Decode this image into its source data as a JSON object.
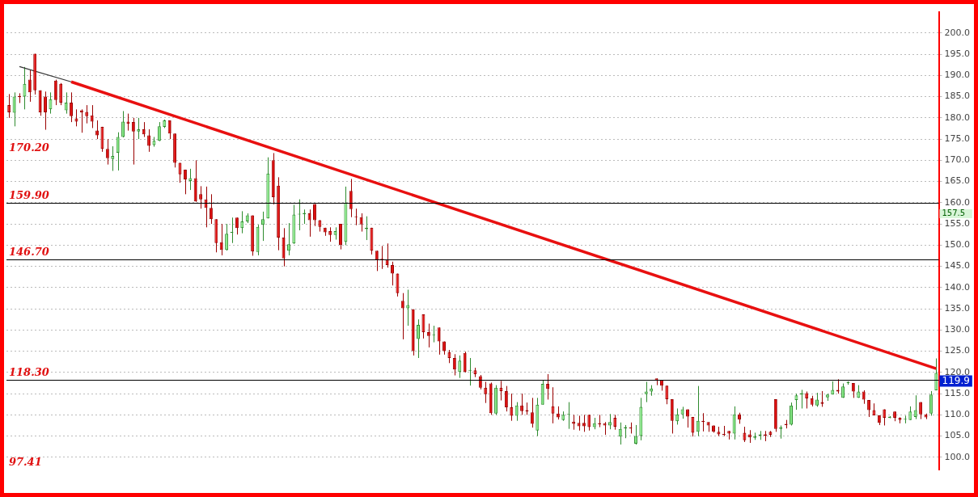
{
  "chart_data": {
    "type": "candlestick",
    "categories": [
      null,
      null,
      null,
      null,
      null,
      null,
      null,
      null,
      null,
      null,
      null,
      null,
      null,
      null,
      null,
      null,
      null,
      null,
      null,
      null,
      null,
      null,
      null,
      null,
      null,
      null,
      null,
      null,
      null,
      null,
      null,
      null,
      null,
      null,
      null,
      null,
      null,
      null,
      null,
      null,
      null,
      null,
      null,
      null,
      null,
      null,
      null,
      null,
      null,
      null,
      null,
      null,
      null,
      null,
      null,
      null,
      null,
      null,
      null,
      null,
      null,
      null,
      null,
      null,
      null,
      null,
      null,
      null,
      null,
      null,
      null,
      null,
      null,
      null,
      null,
      null,
      null,
      null,
      null,
      null,
      null,
      null,
      null,
      null,
      null,
      null,
      null,
      null,
      null,
      null,
      null,
      null,
      null,
      null,
      null,
      null,
      null,
      null,
      null,
      null,
      null,
      null,
      null,
      null,
      null,
      null,
      null,
      null,
      null,
      null,
      null,
      null,
      null,
      null,
      null,
      null,
      null,
      null,
      null,
      null,
      null,
      null,
      null,
      null,
      null,
      null,
      null,
      null,
      null,
      null,
      null,
      null,
      null,
      null,
      null,
      null,
      null,
      null,
      null,
      null,
      null,
      null,
      null,
      null,
      null,
      null,
      null,
      null,
      null,
      null,
      null,
      null,
      null,
      null,
      null,
      null,
      null,
      null,
      null,
      null,
      null,
      null,
      null,
      null,
      null,
      null,
      null,
      null,
      null,
      null,
      null,
      null,
      null,
      null,
      null,
      null,
      null,
      null,
      null,
      null
    ],
    "ohlc": [
      [
        183,
        185.6,
        180,
        181.3
      ],
      [
        181.2,
        186,
        178,
        185
      ],
      [
        185.1,
        185.8,
        183.5,
        184.9
      ],
      [
        185,
        192,
        182,
        188
      ],
      [
        189,
        191.2,
        183.8,
        186
      ],
      [
        195.1,
        195.1,
        185.5,
        186.5
      ],
      [
        186.5,
        186.5,
        180.5,
        181.3
      ],
      [
        185,
        186.2,
        177.2,
        181.3
      ],
      [
        182,
        186,
        181,
        184.4
      ],
      [
        188.8,
        189,
        183,
        184.2
      ],
      [
        188,
        188.2,
        183,
        183.6
      ],
      [
        181.8,
        186,
        181,
        183.6
      ],
      [
        183.6,
        186,
        179,
        180.4
      ],
      [
        179.9,
        182,
        178,
        179.1
      ],
      [
        181.8,
        182,
        176.5,
        181.3
      ],
      [
        181.4,
        183,
        178.7,
        180.4
      ],
      [
        180.6,
        183,
        177.6,
        179.1
      ],
      [
        177,
        179.4,
        175,
        175.9
      ],
      [
        177.9,
        177.9,
        172,
        172.7
      ],
      [
        172.7,
        175,
        169,
        170.5
      ],
      [
        170.3,
        173.3,
        167.5,
        171
      ],
      [
        171.8,
        176.6,
        167.6,
        175.5
      ],
      [
        175.5,
        181.6,
        175.4,
        179.1
      ],
      [
        179.1,
        181,
        177,
        178.6
      ],
      [
        179,
        180,
        169,
        176.8
      ],
      [
        176.8,
        180,
        175,
        177.3
      ],
      [
        177.3,
        179,
        175.5,
        176.1
      ],
      [
        175.9,
        177.3,
        172,
        173.4
      ],
      [
        173.6,
        175.5,
        173.2,
        174.6
      ],
      [
        174.6,
        179,
        174.5,
        178
      ],
      [
        177.9,
        179.6,
        177.6,
        179.4
      ],
      [
        179.4,
        179.4,
        175,
        176.3
      ],
      [
        176.3,
        176.3,
        168.3,
        169.4
      ],
      [
        169.4,
        169.4,
        164.7,
        166.7
      ],
      [
        167.8,
        167.8,
        162,
        165.5
      ],
      [
        165.1,
        168,
        163,
        165.8
      ],
      [
        165.8,
        170,
        160.2,
        160.3
      ],
      [
        162,
        163.9,
        158.6,
        160.8
      ],
      [
        160.8,
        163.8,
        154.2,
        158.8
      ],
      [
        158.8,
        162,
        155,
        156.1
      ],
      [
        156.1,
        156.1,
        148.3,
        150.5
      ],
      [
        150.7,
        155,
        147.6,
        148.9
      ],
      [
        148.9,
        155,
        148.7,
        152.7
      ],
      [
        152.9,
        156.5,
        150.5,
        153.1
      ],
      [
        156.5,
        156.5,
        152.5,
        154
      ],
      [
        154,
        158,
        152.8,
        155.6
      ],
      [
        155.6,
        157.5,
        155.2,
        157
      ],
      [
        157,
        157,
        147.5,
        148.5
      ],
      [
        148.4,
        154.8,
        147.6,
        154.3
      ],
      [
        154.8,
        157.9,
        151,
        156.1
      ],
      [
        156.3,
        170.7,
        156.3,
        166.9
      ],
      [
        170,
        171.7,
        159.6,
        161.3
      ],
      [
        164,
        166,
        148.8,
        151.8
      ],
      [
        151.8,
        154,
        145,
        146.9
      ],
      [
        148.7,
        155.2,
        147.6,
        150.2
      ],
      [
        150.4,
        159.5,
        150.3,
        157.2
      ],
      [
        157.2,
        160.8,
        153.5,
        157.4
      ],
      [
        157.3,
        158.4,
        155,
        157.6
      ],
      [
        157.5,
        158.4,
        152,
        155.9
      ],
      [
        159.7,
        159.7,
        154.5,
        155.9
      ],
      [
        155.9,
        155.9,
        153.2,
        154.3
      ],
      [
        154.1,
        154.1,
        152.2,
        153
      ],
      [
        153.3,
        154.2,
        150.8,
        152.4
      ],
      [
        152.4,
        154.2,
        151.3,
        153.3
      ],
      [
        155,
        155,
        149,
        150
      ],
      [
        150.8,
        163.8,
        150,
        160
      ],
      [
        162.8,
        165.6,
        156.6,
        158.5
      ],
      [
        156.8,
        158.6,
        154.7,
        156.6
      ],
      [
        156.6,
        157.5,
        153.2,
        154.9
      ],
      [
        153.8,
        156.8,
        151.2,
        154.1
      ],
      [
        154.1,
        154.1,
        147.8,
        148.7
      ],
      [
        148.7,
        148.7,
        143.9,
        146.6
      ],
      [
        146.8,
        149.8,
        144.4,
        146.5
      ],
      [
        146.6,
        150.4,
        144.7,
        145.3
      ],
      [
        145.3,
        146.1,
        140.5,
        143.3
      ],
      [
        143.3,
        143.3,
        137.9,
        138.7
      ],
      [
        136.9,
        138.7,
        127.8,
        135.1
      ],
      [
        135.1,
        139.5,
        131,
        135.9
      ],
      [
        134.9,
        134.9,
        124,
        125
      ],
      [
        127.9,
        132.5,
        123.4,
        131.2
      ],
      [
        133.7,
        133.7,
        128,
        129.5
      ],
      [
        129.5,
        131.5,
        125.9,
        128.6
      ],
      [
        128.8,
        131,
        127.1,
        128.8
      ],
      [
        130.6,
        130.6,
        124.2,
        127.3
      ],
      [
        127.3,
        127.3,
        124.2,
        125
      ],
      [
        124.8,
        125.3,
        122.2,
        123.4
      ],
      [
        123.4,
        124.3,
        119.3,
        120.7
      ],
      [
        120.1,
        124,
        118.7,
        122.8
      ],
      [
        124.6,
        124.9,
        120,
        120.1
      ],
      [
        120.4,
        123.4,
        116.9,
        120.6
      ],
      [
        120.5,
        121.1,
        118.9,
        119.6
      ],
      [
        119.1,
        119.4,
        116,
        116.4
      ],
      [
        116.4,
        117.8,
        112.8,
        114.9
      ],
      [
        117.4,
        117.6,
        110,
        110.4
      ],
      [
        110.3,
        117,
        110,
        116.4
      ],
      [
        116.4,
        118,
        113.4,
        115.6
      ],
      [
        115.6,
        116.8,
        110.8,
        111.8
      ],
      [
        111.8,
        115,
        108.6,
        109.8
      ],
      [
        109.8,
        113,
        108.6,
        112.2
      ],
      [
        112.2,
        115,
        110,
        110.9
      ],
      [
        111.1,
        112.9,
        110,
        110.8
      ],
      [
        110.6,
        114,
        107,
        107.9
      ],
      [
        106.3,
        114,
        105,
        112.4
      ],
      [
        112.4,
        118.1,
        112.4,
        117.3
      ],
      [
        117.3,
        119.6,
        113.6,
        116.1
      ],
      [
        112,
        116.5,
        108,
        110.3
      ],
      [
        110.3,
        112,
        108.9,
        109.4
      ],
      [
        108.8,
        110.8,
        108.6,
        110
      ],
      [
        110,
        113,
        106.7,
        110
      ],
      [
        108.4,
        110,
        106.5,
        107.9
      ],
      [
        108.1,
        109.8,
        106.3,
        107.3
      ],
      [
        108.1,
        110,
        106,
        107.3
      ],
      [
        110,
        110,
        106.3,
        107.1
      ],
      [
        107.1,
        109.3,
        106.6,
        108
      ],
      [
        108,
        110,
        107.1,
        107.8
      ],
      [
        108,
        108.3,
        105.3,
        107.5
      ],
      [
        107.5,
        110.2,
        106.6,
        108.3
      ],
      [
        109.3,
        110,
        106.5,
        107.2
      ],
      [
        104.9,
        108.2,
        103,
        106.7
      ],
      [
        106.8,
        107.6,
        104.5,
        107.1
      ],
      [
        107,
        108.2,
        105.6,
        106.8
      ],
      [
        103.2,
        107.6,
        103,
        105
      ],
      [
        105,
        114,
        104,
        111.9
      ],
      [
        114.9,
        117.8,
        113,
        115.5
      ],
      [
        115.5,
        117,
        114.5,
        116.2
      ],
      [
        118.6,
        118.6,
        117,
        118
      ],
      [
        118.2,
        118.2,
        115.7,
        116.9
      ],
      [
        116.9,
        116.9,
        112.5,
        113.7
      ],
      [
        113.7,
        113.7,
        105.6,
        108.6
      ],
      [
        108.5,
        111.5,
        107.7,
        110.1
      ],
      [
        110.1,
        111.9,
        109.1,
        111.3
      ],
      [
        111.3,
        111.3,
        107,
        109.6
      ],
      [
        109.5,
        109.5,
        104.9,
        105.8
      ],
      [
        106,
        116.8,
        105,
        108.6
      ],
      [
        108.6,
        110.4,
        106.1,
        108.3
      ],
      [
        108.3,
        108.3,
        106,
        107.5
      ],
      [
        107.5,
        107.5,
        105.8,
        106
      ],
      [
        106,
        107.2,
        105,
        105.4
      ],
      [
        105.5,
        107.4,
        105,
        105.3
      ],
      [
        106.2,
        106.2,
        104.2,
        105.6
      ],
      [
        105.6,
        112,
        104.2,
        110.1
      ],
      [
        110.1,
        110.5,
        107.9,
        108.9
      ],
      [
        105.8,
        107.2,
        103.6,
        104
      ],
      [
        105.4,
        106.4,
        103.4,
        104.7
      ],
      [
        104.6,
        105.8,
        104.1,
        105
      ],
      [
        105,
        106.2,
        104.1,
        105.4
      ],
      [
        105.4,
        106.2,
        103.8,
        105.1
      ],
      [
        106,
        106.2,
        104.8,
        105.3
      ],
      [
        113.7,
        113.7,
        106,
        106.7
      ],
      [
        106.7,
        107.5,
        104.4,
        107.1
      ],
      [
        107.9,
        108.8,
        106.8,
        107.6
      ],
      [
        107.7,
        112.9,
        107.5,
        112.2
      ],
      [
        113.5,
        115,
        111.2,
        114.6
      ],
      [
        114.8,
        115.9,
        111.5,
        115.1
      ],
      [
        115.1,
        115.5,
        111.5,
        113.9
      ],
      [
        113.9,
        114.5,
        112,
        112.4
      ],
      [
        112.2,
        115.2,
        111.9,
        113.6
      ],
      [
        113,
        115.6,
        111.9,
        112.6
      ],
      [
        114.1,
        115,
        113.3,
        114.8
      ],
      [
        114.8,
        117.9,
        114.8,
        115.9
      ],
      [
        115.9,
        118.4,
        115,
        115.5
      ],
      [
        114,
        117.4,
        114,
        116.7
      ],
      [
        117.5,
        117.9,
        117.1,
        117.5
      ],
      [
        117.5,
        117.5,
        114,
        115.5
      ],
      [
        114,
        117,
        114,
        115.5
      ],
      [
        115.5,
        115.8,
        112.6,
        113.6
      ],
      [
        113.5,
        113.5,
        109.5,
        111.1
      ],
      [
        111.1,
        112.7,
        109.9,
        109.9
      ],
      [
        109.9,
        109.9,
        107.6,
        108.1
      ],
      [
        111.3,
        111.3,
        107.5,
        109.3
      ],
      [
        109.3,
        109.7,
        109.2,
        109.6
      ],
      [
        110.8,
        110.8,
        108.5,
        109.3
      ],
      [
        109.3,
        109.4,
        108,
        108.8
      ],
      [
        108.9,
        109.8,
        108,
        108.9
      ],
      [
        108.8,
        112,
        108.8,
        110.8
      ],
      [
        109.5,
        114.6,
        109,
        111.1
      ],
      [
        113,
        113,
        109,
        110.1
      ],
      [
        110.1,
        110.3,
        109,
        109.4
      ],
      [
        110.3,
        115.6,
        109.8,
        114.8
      ],
      [
        115.8,
        123.3,
        115.8,
        119.9
      ]
    ],
    "series": [
      {
        "type": "line",
        "color": "#e81010",
        "values": [
          null,
          null,
          null,
          null,
          null,
          null,
          null,
          null,
          null,
          null,
          null,
          null,
          188.5,
          null,
          null,
          null,
          null,
          null,
          null,
          null,
          null,
          null,
          null,
          null,
          null,
          null,
          null,
          null,
          null,
          null,
          null,
          null,
          null,
          null,
          null,
          null,
          null,
          null,
          null,
          null,
          null,
          null,
          null,
          null,
          null,
          null,
          null,
          null,
          null,
          null,
          null,
          null,
          null,
          null,
          null,
          null,
          null,
          null,
          null,
          null,
          null,
          null,
          null,
          null,
          null,
          null,
          null,
          null,
          null,
          null,
          null,
          null,
          null,
          null,
          null,
          null,
          null,
          null,
          null,
          null,
          null,
          null,
          null,
          null,
          null,
          null,
          null,
          null,
          null,
          null,
          null,
          null,
          null,
          null,
          null,
          null,
          null,
          null,
          null,
          null,
          null,
          null,
          null,
          null,
          null,
          null,
          null,
          null,
          null,
          null,
          null,
          null,
          null,
          null,
          null,
          null,
          null,
          null,
          null,
          null,
          null,
          null,
          null,
          null,
          null,
          null,
          null,
          null,
          null,
          null,
          null,
          null,
          null,
          null,
          null,
          null,
          null,
          null,
          null,
          null,
          null,
          null,
          null,
          null,
          null,
          null,
          null,
          null,
          null,
          null,
          null,
          null,
          null,
          null,
          null,
          null,
          null,
          null,
          null,
          null,
          null,
          null,
          null,
          null,
          null,
          null,
          null,
          null,
          null,
          null,
          null,
          null,
          null,
          null,
          null,
          null,
          null,
          null,
          null,
          120.9
        ]
      },
      {
        "type": "line",
        "color": "#333333",
        "values": [
          null,
          null,
          192.1,
          null,
          null,
          null,
          null,
          null,
          null,
          null,
          null,
          null,
          188.5,
          null,
          null,
          null,
          null,
          null,
          null,
          null,
          null,
          null,
          null,
          null,
          null,
          null,
          null,
          null,
          null,
          null,
          null,
          null,
          null,
          null,
          null,
          null,
          null,
          null,
          null,
          null,
          null,
          null,
          null,
          null,
          null,
          null,
          null,
          null,
          null,
          null,
          null,
          null,
          null,
          null,
          null,
          null,
          null,
          null,
          null,
          null,
          null,
          null,
          null,
          null,
          null,
          null,
          null,
          null,
          null,
          null,
          null,
          null,
          null,
          null,
          null,
          null,
          null,
          null,
          null,
          null,
          null,
          null,
          null,
          null,
          null,
          null,
          null,
          null,
          null,
          null,
          null,
          null,
          null,
          null,
          null,
          null,
          null,
          null,
          null,
          null,
          null,
          null,
          null,
          null,
          null,
          null,
          null,
          null,
          null,
          null,
          null,
          null,
          null,
          null,
          null,
          null,
          null,
          null,
          null,
          null,
          null,
          null,
          null,
          null,
          null,
          null,
          null,
          null,
          null,
          null,
          null,
          null,
          null,
          null,
          null,
          null,
          null,
          null,
          null,
          null,
          null,
          null,
          null,
          null,
          null,
          null,
          null,
          null,
          null,
          null,
          null,
          null,
          null,
          null,
          null,
          null,
          null,
          null,
          null,
          null,
          null,
          null,
          null,
          null,
          null,
          null,
          null,
          null,
          null,
          null,
          null,
          null,
          null,
          null,
          null,
          null,
          null,
          null,
          null,
          null
        ]
      }
    ],
    "ylim": [
      97,
      205
    ],
    "yticks": [
      {
        "value": 100,
        "label": "100.0"
      },
      {
        "value": 105,
        "label": "105.0"
      },
      {
        "value": 110,
        "label": "110.0"
      },
      {
        "value": 115,
        "label": "115.0"
      },
      {
        "value": 120,
        "label": "120.0"
      },
      {
        "value": 125,
        "label": "125.0"
      },
      {
        "value": 130,
        "label": "130.0"
      },
      {
        "value": 135,
        "label": "135.0"
      },
      {
        "value": 140,
        "label": "140.0"
      },
      {
        "value": 145,
        "label": "145.0"
      },
      {
        "value": 150,
        "label": "150.0"
      },
      {
        "value": 155,
        "label": "155.0"
      },
      {
        "value": 160,
        "label": "160.0"
      },
      {
        "value": 165,
        "label": "165.0"
      },
      {
        "value": 170,
        "label": "170.0"
      },
      {
        "value": 175,
        "label": "175.0"
      },
      {
        "value": 180,
        "label": "180.0"
      },
      {
        "value": 185,
        "label": "185.0"
      },
      {
        "value": 190,
        "label": "190.0"
      },
      {
        "value": 195,
        "label": "195.0"
      },
      {
        "value": 200,
        "label": "200.0"
      }
    ],
    "ref_lines": [
      {
        "axis": "y",
        "value": 159.9,
        "label": "159.90",
        "color": "#000000"
      },
      {
        "axis": "y",
        "value": 146.7,
        "label": "146.70",
        "color": "#000000"
      },
      {
        "axis": "y",
        "value": 118.3,
        "label": "118.30",
        "color": "#000000"
      }
    ],
    "annotations": [
      "170.20",
      "97.41",
      "157.5",
      "119.9"
    ],
    "grid": "y",
    "legend": false,
    "marker": "none",
    "line_style": "solid"
  }
}
